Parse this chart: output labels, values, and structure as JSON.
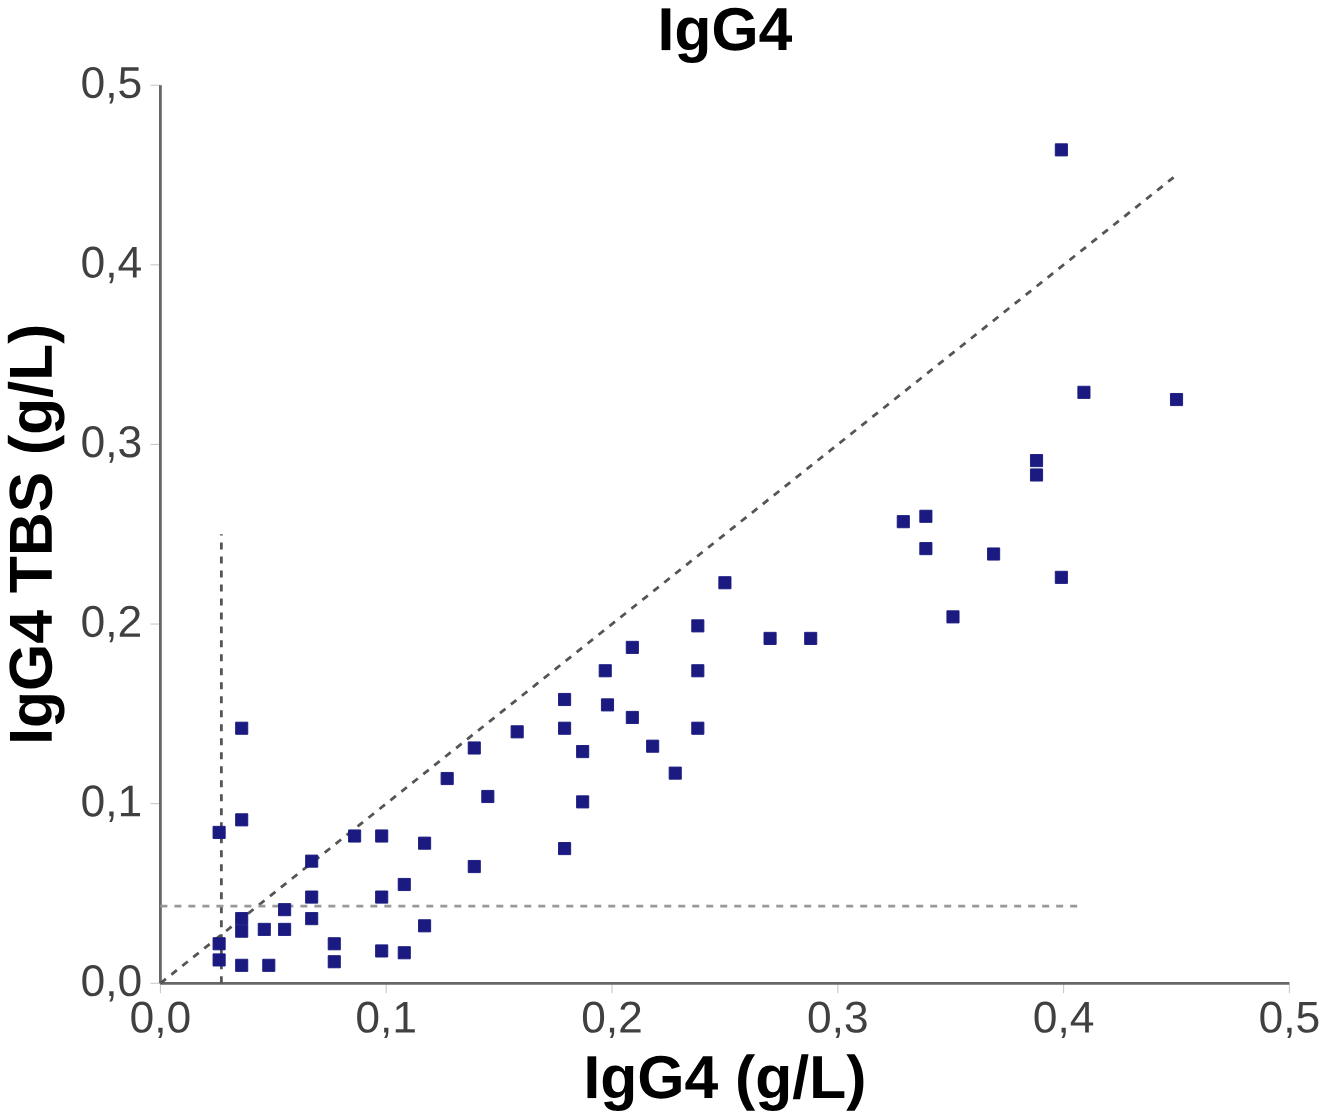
{
  "chart_data": {
    "type": "scatter",
    "title": "IgG4",
    "xlabel": "IgG4 (g/L)",
    "ylabel": "IgG4 TBS (g/L)",
    "xlim": [
      0,
      0.5
    ],
    "ylim": [
      0,
      0.5
    ],
    "xticks": [
      {
        "value": 0,
        "label": "0,0"
      },
      {
        "value": 0.1,
        "label": "0,1"
      },
      {
        "value": 0.2,
        "label": "0,2"
      },
      {
        "value": 0.3,
        "label": "0,3"
      },
      {
        "value": 0.4,
        "label": "0,4"
      },
      {
        "value": 0.5,
        "label": "0,5"
      }
    ],
    "yticks": [
      {
        "value": 0,
        "label": "0,0"
      },
      {
        "value": 0.1,
        "label": "0,1"
      },
      {
        "value": 0.2,
        "label": "0,2"
      },
      {
        "value": 0.3,
        "label": "0,3"
      },
      {
        "value": 0.4,
        "label": "0,4"
      },
      {
        "value": 0.5,
        "label": "0,5"
      }
    ],
    "marker": "square",
    "grid": false,
    "series": [
      {
        "color": "#1a1a80",
        "x": [
          0.036,
          0.036,
          0.026,
          0.067,
          0.086,
          0.098,
          0.117,
          0.127,
          0.139,
          0.145,
          0.139,
          0.158,
          0.179,
          0.179,
          0.187,
          0.187,
          0.179,
          0.197,
          0.198,
          0.209,
          0.209,
          0.218,
          0.228,
          0.238,
          0.238,
          0.238,
          0.067,
          0.067,
          0.055,
          0.055,
          0.046,
          0.036,
          0.036,
          0.026,
          0.026,
          0.036,
          0.048,
          0.077,
          0.077,
          0.098,
          0.108,
          0.117,
          0.098,
          0.108,
          0.399,
          0.409,
          0.45,
          0.388,
          0.388,
          0.329,
          0.339,
          0.339,
          0.369,
          0.399,
          0.351,
          0.25,
          0.27,
          0.288
        ],
        "values": [
          0.142,
          0.091,
          0.084,
          0.068,
          0.082,
          0.082,
          0.078,
          0.114,
          0.131,
          0.104,
          0.065,
          0.14,
          0.158,
          0.142,
          0.129,
          0.101,
          0.075,
          0.174,
          0.155,
          0.187,
          0.148,
          0.132,
          0.117,
          0.199,
          0.174,
          0.142,
          0.048,
          0.036,
          0.041,
          0.03,
          0.03,
          0.036,
          0.029,
          0.022,
          0.013,
          0.01,
          0.01,
          0.022,
          0.012,
          0.048,
          0.055,
          0.032,
          0.018,
          0.017,
          0.464,
          0.329,
          0.325,
          0.291,
          0.283,
          0.257,
          0.26,
          0.242,
          0.239,
          0.226,
          0.204,
          0.223,
          0.192,
          0.192
        ]
      },
      {
        "type": "line",
        "color": "#555555",
        "line_style": "dashed",
        "marker": "none",
        "x": [
          0,
          0.45
        ],
        "values": [
          0,
          0.45
        ]
      },
      {
        "type": "line",
        "color": "#555555",
        "line_style": "dashed",
        "marker": "none",
        "x": [
          0.027,
          0.027
        ],
        "values": [
          0,
          0.25
        ]
      },
      {
        "type": "line",
        "color": "#999999",
        "line_style": "dashed",
        "marker": "none",
        "x": [
          0,
          0.406
        ],
        "values": [
          0.043,
          0.043
        ]
      }
    ]
  }
}
